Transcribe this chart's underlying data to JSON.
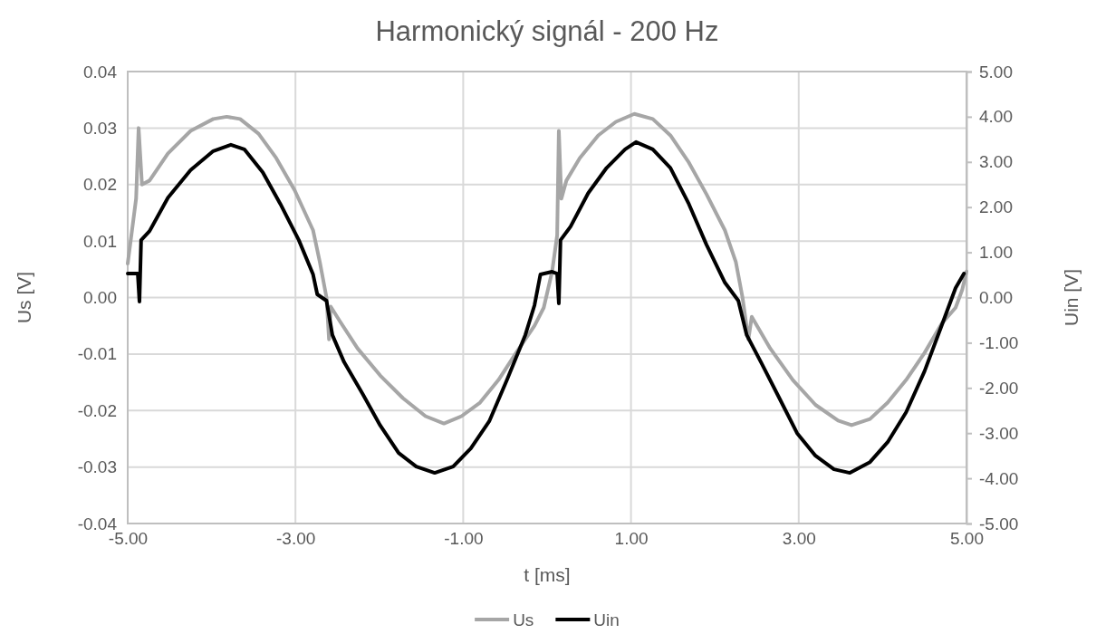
{
  "chart_data": {
    "type": "line",
    "title": "Harmonický signál - 200 Hz",
    "xlabel": "t [ms]",
    "ylabel": "Us [V]",
    "y2label": "Uin [V]",
    "xlim": [
      -5,
      5
    ],
    "xticks": [
      {
        "value": -5,
        "label": "-5.00"
      },
      {
        "value": -3,
        "label": "-3.00"
      },
      {
        "value": -1,
        "label": "-1.00"
      },
      {
        "value": 1,
        "label": "1.00"
      },
      {
        "value": 3,
        "label": "3.00"
      },
      {
        "value": 5,
        "label": "5.00"
      }
    ],
    "ylim": [
      -0.04,
      0.04
    ],
    "yticks": [
      {
        "value": -0.04,
        "label": "-0.04"
      },
      {
        "value": -0.03,
        "label": "-0.03"
      },
      {
        "value": -0.02,
        "label": "-0.02"
      },
      {
        "value": -0.01,
        "label": "-0.01"
      },
      {
        "value": 0,
        "label": "0.00"
      },
      {
        "value": 0.01,
        "label": "0.01"
      },
      {
        "value": 0.02,
        "label": "0.02"
      },
      {
        "value": 0.03,
        "label": "0.03"
      },
      {
        "value": 0.04,
        "label": "0.04"
      }
    ],
    "y2lim": [
      -5,
      5
    ],
    "y2ticks": [
      {
        "value": -5,
        "label": "-5.00"
      },
      {
        "value": -4,
        "label": "-4.00"
      },
      {
        "value": -3,
        "label": "-3.00"
      },
      {
        "value": -2,
        "label": "-2.00"
      },
      {
        "value": -1,
        "label": "-1.00"
      },
      {
        "value": 0,
        "label": "0.00"
      },
      {
        "value": 1,
        "label": "1.00"
      },
      {
        "value": 2,
        "label": "2.00"
      },
      {
        "value": 3,
        "label": "3.00"
      },
      {
        "value": 4,
        "label": "4.00"
      },
      {
        "value": 5,
        "label": "5.00"
      }
    ],
    "grid": true,
    "legend": "bottom",
    "marker": "none",
    "line_style": "solid",
    "series": [
      {
        "name": "Us",
        "color": "#a6a6a6",
        "x": [
          -5,
          -4.9,
          -4.87,
          -4.83,
          -4.74,
          -4.52,
          -4.25,
          -3.98,
          -3.82,
          -3.66,
          -3.44,
          -3.23,
          -3.01,
          -2.79,
          -2.71,
          -2.63,
          -2.6,
          -2.58,
          -2.47,
          -2.26,
          -1.99,
          -1.72,
          -1.45,
          -1.23,
          -1.02,
          -0.8,
          -0.58,
          -0.37,
          -0.15,
          -0.04,
          0.06,
          0.12,
          0.14,
          0.17,
          0.23,
          0.39,
          0.61,
          0.82,
          1.04,
          1.26,
          1.47,
          1.69,
          1.9,
          2.12,
          2.25,
          2.33,
          2.4,
          2.44,
          2.66,
          2.93,
          3.2,
          3.47,
          3.63,
          3.85,
          4.06,
          4.28,
          4.5,
          4.71,
          4.87,
          4.95,
          5
        ],
        "values": [
          0.006,
          0.0175,
          0.03,
          0.02,
          0.0207,
          0.0255,
          0.0295,
          0.0316,
          0.032,
          0.0316,
          0.029,
          0.0247,
          0.019,
          0.0119,
          0.0063,
          0,
          -0.0074,
          -0.0016,
          -0.0042,
          -0.009,
          -0.0138,
          -0.0178,
          -0.021,
          -0.0223,
          -0.021,
          -0.0186,
          -0.0146,
          -0.0098,
          -0.005,
          -0.0018,
          0.0046,
          0.011,
          0.0295,
          0.0175,
          0.0207,
          0.0247,
          0.0287,
          0.0311,
          0.0325,
          0.0316,
          0.0287,
          0.0239,
          0.0183,
          0.0119,
          0.0063,
          0,
          -0.0074,
          -0.0034,
          -0.009,
          -0.0146,
          -0.019,
          -0.0218,
          -0.0226,
          -0.0215,
          -0.0186,
          -0.0146,
          -0.0098,
          -0.0045,
          -0.0018,
          0.0014,
          0.0046
        ]
      },
      {
        "name": "Uin",
        "color": "#000000",
        "axis": "y2",
        "x": [
          -5,
          -4.88,
          -4.86,
          -4.84,
          -4.74,
          -4.52,
          -4.25,
          -3.98,
          -3.77,
          -3.61,
          -3.39,
          -3.18,
          -2.96,
          -2.79,
          -2.74,
          -2.63,
          -2.56,
          -2.42,
          -2.2,
          -1.99,
          -1.77,
          -1.56,
          -1.34,
          -1.12,
          -0.91,
          -0.69,
          -0.48,
          -0.26,
          -0.15,
          -0.08,
          0.06,
          0.12,
          0.14,
          0.16,
          0.28,
          0.49,
          0.71,
          0.93,
          1.06,
          1.26,
          1.47,
          1.69,
          1.9,
          2.12,
          2.28,
          2.38,
          2.55,
          2.77,
          2.98,
          3.2,
          3.42,
          3.61,
          3.85,
          4.06,
          4.28,
          4.5,
          4.71,
          4.87,
          4.97
        ],
        "values": [
          0.53,
          0.53,
          -0.09,
          1.27,
          1.47,
          2.21,
          2.82,
          3.24,
          3.38,
          3.28,
          2.77,
          2.07,
          1.27,
          0.51,
          0.07,
          -0.07,
          -0.83,
          -1.43,
          -2.13,
          -2.83,
          -3.44,
          -3.74,
          -3.88,
          -3.74,
          -3.34,
          -2.74,
          -1.83,
          -0.83,
          -0.17,
          0.51,
          0.57,
          0.53,
          -0.13,
          1.27,
          1.57,
          2.31,
          2.87,
          3.28,
          3.44,
          3.28,
          2.87,
          2.07,
          1.17,
          0.33,
          -0.07,
          -0.83,
          -1.43,
          -2.23,
          -3,
          -3.5,
          -3.8,
          -3.88,
          -3.64,
          -3.2,
          -2.54,
          -1.63,
          -0.59,
          0.21,
          0.53
        ]
      }
    ]
  }
}
